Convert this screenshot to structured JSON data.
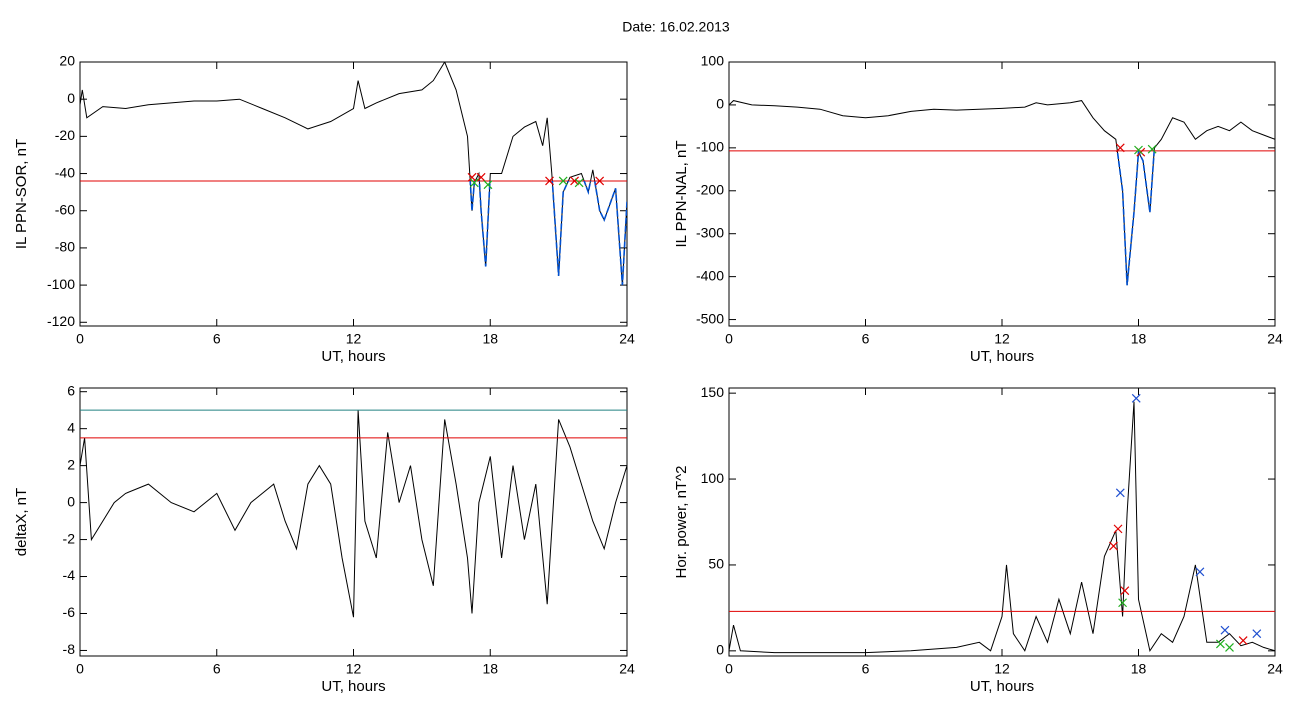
{
  "title": "Date:  16.02.2013",
  "chart_data": [
    {
      "type": "line",
      "ylabel": "IL PPN-SOR, nT",
      "xlabel": "UT, hours",
      "color": "#000000",
      "below_color": "#0050d0",
      "x": [
        0,
        0.1,
        0.3,
        1,
        2,
        3,
        4,
        5,
        6,
        7,
        8,
        9,
        10,
        11,
        12,
        12.2,
        12.5,
        13,
        14,
        15,
        15.5,
        16,
        16.5,
        17,
        17.2,
        17.3,
        17.5,
        17.6,
        17.8,
        18,
        18.5,
        19,
        19.5,
        20,
        20.3,
        20.5,
        20.7,
        21,
        21.2,
        21.5,
        22,
        22.3,
        22.5,
        22.8,
        23,
        23.5,
        23.8,
        24
      ],
      "values": [
        -3,
        5,
        -10,
        -4,
        -5,
        -3,
        -2,
        -1,
        -1,
        0,
        -5,
        -10,
        -16,
        -12,
        -5,
        10,
        -5,
        -2,
        3,
        5,
        10,
        20,
        5,
        -20,
        -60,
        -45,
        -40,
        -60,
        -90,
        -40,
        -40,
        -20,
        -15,
        -12,
        -25,
        -10,
        -40,
        -95,
        -50,
        -42,
        -40,
        -50,
        -38,
        -60,
        -65,
        -48,
        -100,
        -55
      ],
      "xlim": [
        0,
        24
      ],
      "xticks": [
        0,
        6,
        12,
        18,
        24
      ],
      "ylim": [
        -122,
        20
      ],
      "yticks": [
        20,
        0,
        -20,
        -40,
        -60,
        -80,
        -100,
        -120
      ],
      "hlines": [
        {
          "value": -44,
          "color": "#e00000"
        }
      ],
      "markers": [
        {
          "color": "#e00000",
          "x": [
            17.2,
            17.6,
            20.6,
            21.7,
            22.8
          ],
          "values": [
            -42,
            -42,
            -44,
            -44,
            -44
          ]
        },
        {
          "color": "#20b020",
          "x": [
            17.3,
            17.9,
            21.2,
            21.9
          ],
          "values": [
            -45,
            -46,
            -44,
            -45
          ]
        }
      ]
    },
    {
      "type": "line",
      "ylabel": "IL PPN-NAL, nT",
      "xlabel": "UT, hours",
      "color": "#000000",
      "below_color": "#0050d0",
      "x": [
        0,
        0.2,
        1,
        2,
        3,
        4,
        5,
        6,
        7,
        8,
        9,
        10,
        11,
        12,
        13,
        13.5,
        14,
        15,
        15.5,
        16,
        16.5,
        17,
        17.3,
        17.5,
        17.8,
        18,
        18.2,
        18.5,
        18.7,
        19,
        19.5,
        20,
        20.5,
        21,
        21.5,
        22,
        22.5,
        23,
        23.5,
        24
      ],
      "values": [
        0,
        10,
        0,
        -2,
        -5,
        -10,
        -25,
        -30,
        -25,
        -15,
        -10,
        -12,
        -10,
        -8,
        -5,
        5,
        0,
        5,
        10,
        -30,
        -60,
        -80,
        -200,
        -420,
        -250,
        -110,
        -130,
        -250,
        -100,
        -80,
        -30,
        -40,
        -80,
        -60,
        -50,
        -60,
        -40,
        -60,
        -70,
        -80
      ],
      "xlim": [
        0,
        24
      ],
      "xticks": [
        0,
        6,
        12,
        18,
        24
      ],
      "ylim": [
        -515,
        100
      ],
      "yticks": [
        100,
        0,
        -100,
        -200,
        -300,
        -400,
        -500
      ],
      "hlines": [
        {
          "value": -107,
          "color": "#e00000"
        }
      ],
      "markers": [
        {
          "color": "#e00000",
          "x": [
            17.2,
            18.1
          ],
          "values": [
            -100,
            -110
          ]
        },
        {
          "color": "#20b020",
          "x": [
            18.0,
            18.6
          ],
          "values": [
            -105,
            -103
          ]
        }
      ]
    },
    {
      "type": "line",
      "ylabel": "deltaX, nT",
      "xlabel": "UT, hours",
      "color": "#000000",
      "x": [
        0,
        0.2,
        0.5,
        1,
        1.5,
        2,
        3,
        4,
        5,
        6,
        6.8,
        7.5,
        8.5,
        9,
        9.5,
        10,
        10.5,
        11,
        11.5,
        12,
        12.2,
        12.5,
        13,
        13.5,
        14,
        14.5,
        15,
        15.5,
        16,
        16.5,
        17,
        17.2,
        17.5,
        18,
        18.5,
        19,
        19.5,
        20,
        20.5,
        21,
        21.5,
        22,
        22.5,
        23,
        23.5,
        24
      ],
      "values": [
        2,
        3.5,
        -2,
        -1,
        0,
        0.5,
        1,
        0,
        -0.5,
        0.5,
        -1.5,
        0,
        1,
        -1,
        -2.5,
        1,
        2,
        1,
        -3,
        -6.2,
        5,
        -1,
        -3,
        3.8,
        0,
        2,
        -2,
        -4.5,
        4.5,
        1,
        -3,
        -6,
        0,
        2.5,
        -3,
        2,
        -2,
        1,
        -5.5,
        4.5,
        3,
        1,
        -1,
        -2.5,
        0,
        2
      ],
      "xlim": [
        0,
        24
      ],
      "xticks": [
        0,
        6,
        12,
        18,
        24
      ],
      "ylim": [
        -8.3,
        6.2
      ],
      "yticks": [
        6,
        4,
        2,
        0,
        -2,
        -4,
        -6,
        -8
      ],
      "hlines": [
        {
          "value": 5.0,
          "color": "#208080"
        },
        {
          "value": 3.5,
          "color": "#e00000"
        }
      ],
      "markers": []
    },
    {
      "type": "line",
      "ylabel": "Hor. power, nT^2",
      "xlabel": "UT, hours",
      "color": "#000000",
      "x": [
        0,
        0.2,
        0.5,
        2,
        4,
        6,
        8,
        10,
        11,
        11.5,
        12,
        12.2,
        12.5,
        13,
        13.5,
        14,
        14.5,
        15,
        15.5,
        16,
        16.5,
        17,
        17.3,
        17.5,
        17.8,
        18,
        18.5,
        19,
        19.5,
        20,
        20.5,
        21,
        21.5,
        22,
        22.5,
        23,
        23.5,
        24
      ],
      "values": [
        0,
        15,
        0,
        -1,
        -1,
        -1,
        0,
        2,
        5,
        0,
        20,
        50,
        10,
        0,
        20,
        5,
        30,
        10,
        40,
        10,
        55,
        70,
        20,
        80,
        145,
        30,
        0,
        10,
        5,
        20,
        50,
        5,
        5,
        10,
        3,
        5,
        2,
        0
      ],
      "xlim": [
        0,
        24
      ],
      "xticks": [
        0,
        6,
        12,
        18,
        24
      ],
      "ylim": [
        -3,
        153
      ],
      "yticks": [
        0,
        50,
        100,
        150
      ],
      "hlines": [
        {
          "value": 23,
          "color": "#e00000"
        }
      ],
      "markers": [
        {
          "color": "#2050d0",
          "x": [
            17.2,
            17.9,
            20.7,
            21.8,
            23.2
          ],
          "values": [
            92,
            147,
            46,
            12,
            10
          ]
        },
        {
          "color": "#e00000",
          "x": [
            16.9,
            17.1,
            17.4,
            22.6
          ],
          "values": [
            61,
            71,
            35,
            6
          ]
        },
        {
          "color": "#20b020",
          "x": [
            17.3,
            21.6,
            22.0
          ],
          "values": [
            28,
            4,
            2
          ]
        }
      ]
    }
  ]
}
